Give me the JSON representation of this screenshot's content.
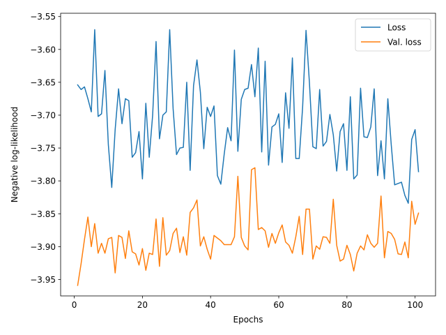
{
  "chart_data": {
    "type": "line",
    "xlabel": "Epochs",
    "ylabel": "Negative log-likelihood",
    "xlim": [
      -4,
      106
    ],
    "ylim": [
      -3.975,
      -3.545
    ],
    "xticks": [
      0,
      20,
      40,
      60,
      80,
      100
    ],
    "yticks": [
      -3.95,
      -3.9,
      -3.85,
      -3.8,
      -3.75,
      -3.7,
      -3.65,
      -3.6,
      -3.55
    ],
    "ytick_labels": [
      "−3.95",
      "−3.90",
      "−3.85",
      "−3.80",
      "−3.75",
      "−3.70",
      "−3.65",
      "−3.60",
      "−3.55"
    ],
    "legend_position": "upper right",
    "x_start": 1,
    "series": [
      {
        "name": "Loss",
        "color": "#1f77b4",
        "values": [
          -3.654,
          -3.661,
          -3.657,
          -3.675,
          -3.695,
          -3.57,
          -3.702,
          -3.698,
          -3.632,
          -3.745,
          -3.81,
          -3.722,
          -3.66,
          -3.713,
          -3.675,
          -3.678,
          -3.764,
          -3.757,
          -3.725,
          -3.797,
          -3.682,
          -3.764,
          -3.7,
          -3.588,
          -3.736,
          -3.7,
          -3.695,
          -3.57,
          -3.69,
          -3.76,
          -3.75,
          -3.749,
          -3.65,
          -3.784,
          -3.655,
          -3.616,
          -3.665,
          -3.751,
          -3.688,
          -3.702,
          -3.686,
          -3.792,
          -3.805,
          -3.759,
          -3.719,
          -3.739,
          -3.601,
          -3.755,
          -3.676,
          -3.661,
          -3.659,
          -3.623,
          -3.672,
          -3.598,
          -3.756,
          -3.618,
          -3.776,
          -3.718,
          -3.714,
          -3.698,
          -3.772,
          -3.666,
          -3.72,
          -3.613,
          -3.766,
          -3.766,
          -3.688,
          -3.571,
          -3.651,
          -3.748,
          -3.751,
          -3.661,
          -3.747,
          -3.74,
          -3.699,
          -3.73,
          -3.785,
          -3.725,
          -3.713,
          -3.784,
          -3.672,
          -3.797,
          -3.791,
          -3.659,
          -3.733,
          -3.734,
          -3.718,
          -3.66,
          -3.792,
          -3.739,
          -3.797,
          -3.675,
          -3.745,
          -3.806,
          -3.804,
          -3.802,
          -3.822,
          -3.834,
          -3.737,
          -3.722,
          -3.786
        ]
      },
      {
        "name": "Val. loss",
        "color": "#ff7f0e",
        "values": [
          -3.959,
          -3.926,
          -3.889,
          -3.855,
          -3.9,
          -3.865,
          -3.91,
          -3.895,
          -3.91,
          -3.888,
          -3.886,
          -3.94,
          -3.883,
          -3.886,
          -3.918,
          -3.876,
          -3.908,
          -3.911,
          -3.928,
          -3.903,
          -3.936,
          -3.91,
          -3.912,
          -3.858,
          -3.93,
          -3.856,
          -3.913,
          -3.906,
          -3.88,
          -3.872,
          -3.909,
          -3.885,
          -3.913,
          -3.848,
          -3.841,
          -3.829,
          -3.899,
          -3.885,
          -3.904,
          -3.919,
          -3.883,
          -3.887,
          -3.891,
          -3.897,
          -3.897,
          -3.897,
          -3.885,
          -3.793,
          -3.886,
          -3.899,
          -3.905,
          -3.783,
          -3.78,
          -3.874,
          -3.871,
          -3.876,
          -3.901,
          -3.88,
          -3.895,
          -3.879,
          -3.867,
          -3.893,
          -3.898,
          -3.91,
          -3.885,
          -3.854,
          -3.912,
          -3.843,
          -3.843,
          -3.919,
          -3.899,
          -3.904,
          -3.885,
          -3.886,
          -3.895,
          -3.828,
          -3.898,
          -3.922,
          -3.919,
          -3.898,
          -3.912,
          -3.937,
          -3.91,
          -3.899,
          -3.905,
          -3.882,
          -3.895,
          -3.901,
          -3.895,
          -3.823,
          -3.917,
          -3.877,
          -3.88,
          -3.889,
          -3.911,
          -3.912,
          -3.893,
          -3.917,
          -3.831,
          -3.866,
          -3.849
        ]
      }
    ]
  }
}
